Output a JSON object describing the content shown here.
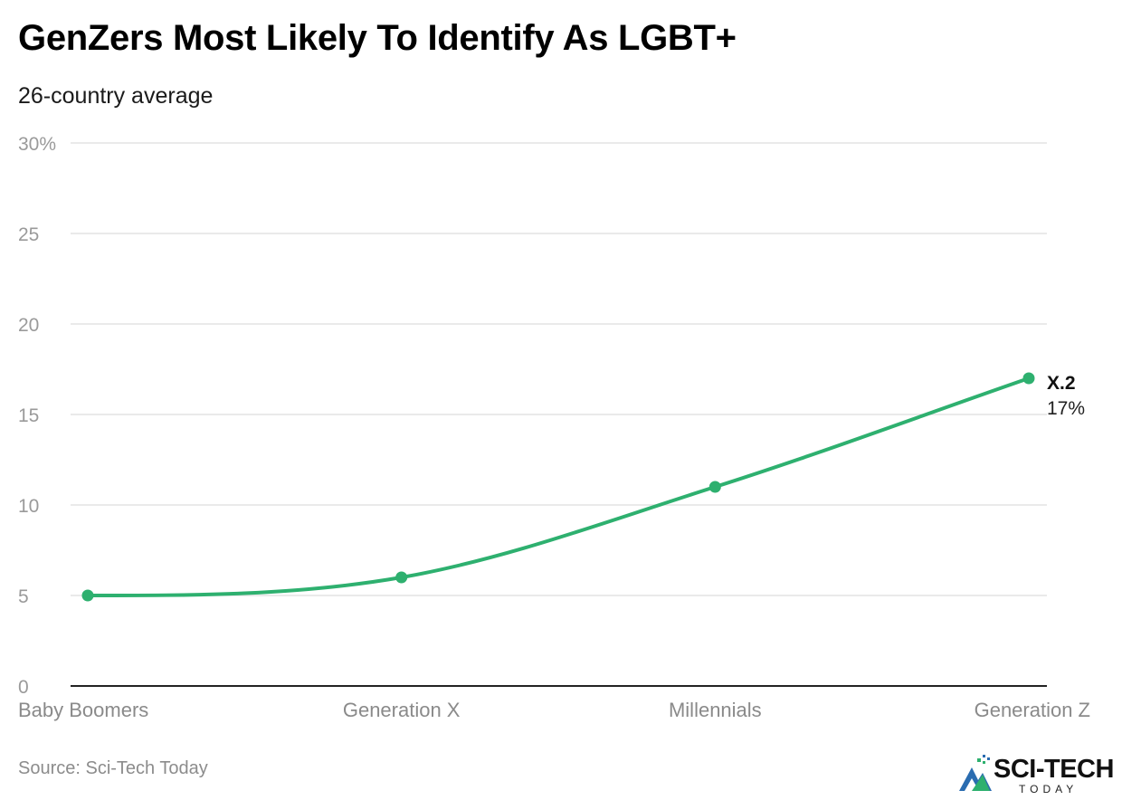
{
  "header": {
    "title": "GenZers Most Likely To Identify As LGBT+",
    "subtitle": "26-country average"
  },
  "footer": {
    "source": "Source: Sci-Tech Today"
  },
  "logo": {
    "wordmark": "SCI-TECH",
    "subtext": "TODAY"
  },
  "colors": {
    "line": "#2eb06f",
    "grid": "#e3e3e3",
    "axis": "#222222",
    "tick_text": "#9a9a9a"
  },
  "chart_data": {
    "type": "line",
    "title": "GenZers Most Likely To Identify As LGBT+",
    "subtitle": "26-country average",
    "categories": [
      "Baby Boomers",
      "Generation X",
      "Millennials",
      "Generation Z"
    ],
    "series": [
      {
        "values": [
          5,
          6,
          11,
          17
        ]
      }
    ],
    "ylim": [
      0,
      30
    ],
    "yticks": [
      0,
      5,
      10,
      15,
      20,
      25,
      30
    ],
    "ytick_labels": [
      "0",
      "5",
      "10",
      "15",
      "20",
      "25",
      "30%"
    ],
    "grid": true,
    "annotation": {
      "category": "Generation Z",
      "label": "X.2",
      "value_label": "17%"
    }
  }
}
